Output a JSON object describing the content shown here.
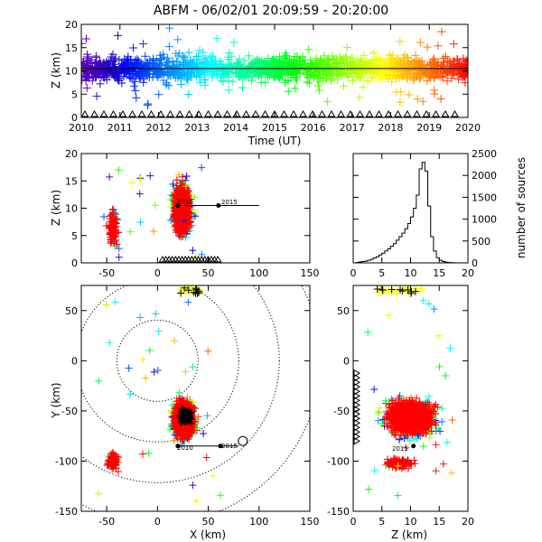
{
  "title": "ABFM - 06/02/01 20:09:59 - 20:20:00",
  "chart_data": [
    {
      "id": "time_height",
      "type": "scatter",
      "title": "ABFM - 06/02/01 20:09:59 - 20:20:00",
      "xlabel": "Time (UT)",
      "ylabel": "Z (km)",
      "xlim": [
        2010,
        2020
      ],
      "ylim": [
        0,
        20
      ],
      "xticks": [
        "2010",
        "2011",
        "2012",
        "2013",
        "2014",
        "2015",
        "2016",
        "2017",
        "2018",
        "2019",
        "2020"
      ],
      "yticks": [
        "0",
        "5",
        "10",
        "15",
        "20"
      ],
      "color_encoding": "time (rainbow: purple to red)",
      "source_band_z": [
        4,
        17
      ],
      "source_band_core_z": [
        7,
        14
      ],
      "reference_line_z": 10.5
    },
    {
      "id": "xz_projection",
      "type": "scatter",
      "xlabel": "",
      "ylabel": "Z (km)",
      "xlim": [
        -75,
        150
      ],
      "ylim": [
        0,
        20
      ],
      "xticks": [
        "-50",
        "0",
        "50",
        "100",
        "150"
      ],
      "yticks": [
        "0",
        "5",
        "10",
        "15",
        "20"
      ],
      "markers": [
        {
          "label": "2010",
          "x": 20,
          "z": 10.5
        },
        {
          "label": "2015",
          "x": 60,
          "z": 10.5
        }
      ],
      "clusters": [
        {
          "x": [
            10,
            38
          ],
          "z": [
            1,
            19
          ],
          "color": "#ff0000"
        },
        {
          "x": [
            -50,
            -38
          ],
          "z": [
            3,
            9
          ],
          "color": "#ff0000"
        }
      ]
    },
    {
      "id": "height_histogram",
      "type": "bar",
      "xlabel": "",
      "ylabel": "number of sources",
      "xlim": [
        0,
        20
      ],
      "ylim": [
        0,
        2500
      ],
      "xticks": [
        "0",
        "5",
        "10",
        "15",
        "20"
      ],
      "yticks": [
        "0",
        "500",
        "1000",
        "1500",
        "2000",
        "2500"
      ],
      "bin_width_km": 0.5,
      "x": [
        0.0,
        0.5,
        1.0,
        1.5,
        2.0,
        2.5,
        3.0,
        3.5,
        4.0,
        4.5,
        5.0,
        5.5,
        6.0,
        6.5,
        7.0,
        7.5,
        8.0,
        8.5,
        9.0,
        9.5,
        10.0,
        10.5,
        11.0,
        11.5,
        12.0,
        12.5,
        13.0,
        13.5,
        14.0,
        14.5,
        15.0,
        15.5,
        16.0,
        16.5,
        17.0,
        17.5,
        18.0,
        18.5,
        19.0,
        19.5
      ],
      "values": [
        0,
        10,
        20,
        30,
        40,
        60,
        80,
        110,
        140,
        180,
        220,
        270,
        320,
        380,
        440,
        520,
        600,
        680,
        780,
        900,
        1050,
        1250,
        1550,
        2150,
        2300,
        2100,
        1300,
        600,
        270,
        120,
        60,
        30,
        15,
        8,
        4,
        2,
        0,
        0,
        0,
        0
      ]
    },
    {
      "id": "plan_view",
      "type": "scatter",
      "xlabel": "X (km)",
      "ylabel": "Y (km)",
      "xlim": [
        -75,
        150
      ],
      "ylim": [
        -150,
        75
      ],
      "xticks": [
        "-50",
        "0",
        "50",
        "100",
        "150"
      ],
      "yticks": [
        "-150",
        "-100",
        "-50",
        "0",
        "50"
      ],
      "range_rings_km": [
        40,
        80,
        120,
        160
      ],
      "markers": [
        {
          "label": "2010",
          "x": 20,
          "y": -85
        },
        {
          "label": "2015",
          "x": 62,
          "y": -85
        }
      ],
      "clusters": [
        {
          "x": [
            8,
            45
          ],
          "y": [
            -90,
            -30
          ],
          "color": "#ff0000"
        },
        {
          "x": [
            -50,
            -38
          ],
          "y": [
            -110,
            -90
          ],
          "color": "#ff0000"
        },
        {
          "x": [
            18,
            40
          ],
          "y": [
            66,
            74
          ],
          "color": "#ffff00"
        }
      ]
    },
    {
      "id": "yz_projection",
      "type": "scatter",
      "xlabel": "Z (km)",
      "ylabel": "",
      "xlim": [
        0,
        20
      ],
      "ylim": [
        -150,
        75
      ],
      "xticks": [
        "0",
        "5",
        "10",
        "15",
        "20"
      ],
      "yticks": [
        "-150",
        "-100",
        "-50",
        "0",
        "50"
      ],
      "markers": [
        {
          "label": "2015",
          "z": 10.5,
          "y": -85
        }
      ],
      "clusters": [
        {
          "z": [
            2,
            18
          ],
          "y": [
            -90,
            -25
          ],
          "color": "#ff0000"
        },
        {
          "z": [
            5,
            11
          ],
          "y": [
            -110,
            -95
          ],
          "color": "#ff0000"
        },
        {
          "z": [
            1,
            9
          ],
          "y": [
            66,
            74
          ],
          "color": "#ffff00"
        }
      ]
    }
  ]
}
